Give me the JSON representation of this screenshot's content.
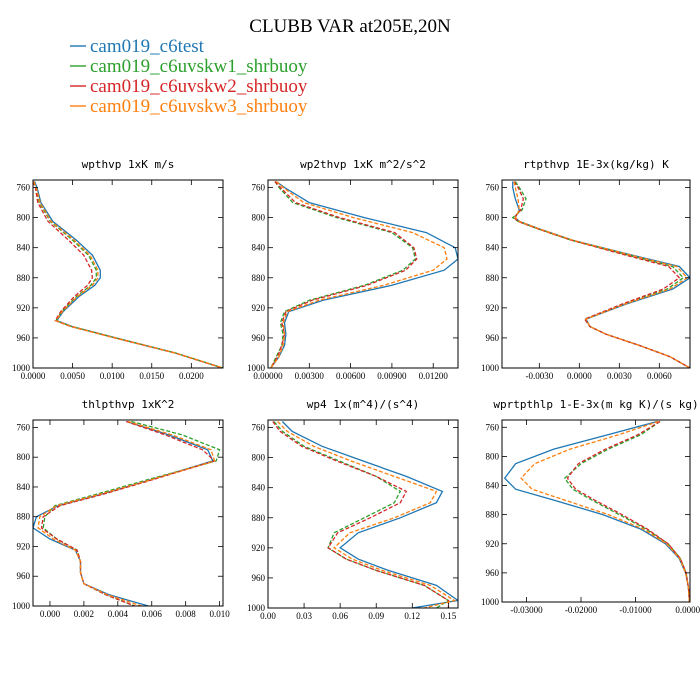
{
  "figure_title": "CLUBB VAR at205E,20N",
  "legend": [
    {
      "label": "cam019_c6test",
      "color": "#1f77b4",
      "dash": "solid"
    },
    {
      "label": "cam019_c6uvskw1_shrbuoy",
      "color": "#2ca02c",
      "dash": "dashed"
    },
    {
      "label": "cam019_c6uvskw2_shrbuoy",
      "color": "#d62728",
      "dash": "dashed"
    },
    {
      "label": "cam019_c6uvskw3_shrbuoy",
      "color": "#ff7f0e",
      "dash": "dashed"
    }
  ],
  "chart_data": [
    {
      "type": "line",
      "title": "wpthvp  1xK m/s",
      "ylim": [
        1000,
        750
      ],
      "yticks": [
        "760",
        "800",
        "840",
        "880",
        "920",
        "960",
        "1000"
      ],
      "xlim": [
        0,
        0.024
      ],
      "xticks": [
        "0.0000",
        "0.0050",
        "0.0100",
        "0.0150",
        "0.0200"
      ],
      "xtick_values": [
        0,
        0.005,
        0.01,
        0.015,
        0.02
      ],
      "y": [
        752,
        760,
        780,
        805,
        830,
        850,
        870,
        880,
        890,
        905,
        925,
        937,
        945,
        960,
        980,
        1000
      ],
      "series": [
        {
          "name": "cam019_c6test",
          "values": [
            0.0002,
            0.0005,
            0.001,
            0.0025,
            0.0055,
            0.0075,
            0.0085,
            0.0085,
            0.0078,
            0.0058,
            0.0038,
            0.003,
            0.005,
            0.0105,
            0.018,
            0.024
          ]
        },
        {
          "name": "cam019_c6uvskw1_shrbuoy",
          "values": [
            0.0001,
            0.0004,
            0.0008,
            0.0022,
            0.005,
            0.007,
            0.008,
            0.008,
            0.0073,
            0.0055,
            0.0036,
            0.0029,
            0.0049,
            0.0104,
            0.018,
            0.024
          ]
        },
        {
          "name": "cam019_c6uvskw2_shrbuoy",
          "values": [
            0.0,
            0.0003,
            0.0006,
            0.0019,
            0.0045,
            0.0064,
            0.0074,
            0.0075,
            0.0069,
            0.0052,
            0.0035,
            0.0028,
            0.0048,
            0.0103,
            0.0179,
            0.0239
          ]
        },
        {
          "name": "cam019_c6uvskw3_shrbuoy",
          "values": [
            0.0001,
            0.0004,
            0.0009,
            0.0023,
            0.0052,
            0.0072,
            0.0082,
            0.0082,
            0.0075,
            0.0056,
            0.0037,
            0.0029,
            0.0049,
            0.0104,
            0.018,
            0.024
          ]
        }
      ]
    },
    {
      "type": "line",
      "title": "wp2thvp  1xK m^2/s^2",
      "ylim": [
        1000,
        750
      ],
      "yticks": [
        "760",
        "800",
        "840",
        "880",
        "920",
        "960",
        "1000"
      ],
      "xlim": [
        0,
        0.0138
      ],
      "xticks": [
        "0.00000",
        "0.00300",
        "0.00600",
        "0.00900",
        "0.01200"
      ],
      "xtick_values": [
        0,
        0.003,
        0.006,
        0.009,
        0.012
      ],
      "y": [
        752,
        760,
        780,
        800,
        820,
        840,
        855,
        870,
        890,
        910,
        925,
        940,
        955,
        970,
        985,
        1000
      ],
      "series": [
        {
          "name": "cam019_c6test",
          "values": [
            0.0006,
            0.0012,
            0.003,
            0.007,
            0.0115,
            0.0136,
            0.0138,
            0.0128,
            0.009,
            0.004,
            0.0015,
            0.0012,
            0.0013,
            0.0012,
            0.0008,
            0.0002
          ]
        },
        {
          "name": "cam019_c6uvskw1_shrbuoy",
          "values": [
            0.0005,
            0.0008,
            0.0018,
            0.005,
            0.009,
            0.0105,
            0.0107,
            0.0098,
            0.007,
            0.003,
            0.0012,
            0.0009,
            0.0011,
            0.001,
            0.0006,
            0.0002
          ]
        },
        {
          "name": "cam019_c6uvskw2_shrbuoy",
          "values": [
            0.0005,
            0.0009,
            0.002,
            0.0052,
            0.0092,
            0.0106,
            0.0108,
            0.01,
            0.0072,
            0.0032,
            0.0013,
            0.001,
            0.0012,
            0.001,
            0.0007,
            0.0002
          ]
        },
        {
          "name": "cam019_c6uvskw3_shrbuoy",
          "values": [
            0.0006,
            0.0011,
            0.0026,
            0.0062,
            0.0105,
            0.0128,
            0.013,
            0.012,
            0.0084,
            0.0037,
            0.0014,
            0.0011,
            0.0012,
            0.0011,
            0.0008,
            0.0002
          ]
        }
      ]
    },
    {
      "type": "line",
      "title": "rtpthvp  1E-3x(kg/kg) K",
      "ylim": [
        1000,
        750
      ],
      "yticks": [
        "760",
        "800",
        "840",
        "880",
        "920",
        "960",
        "1000"
      ],
      "xlim": [
        -0.0058,
        0.0083
      ],
      "xticks": [
        "-0.0030",
        "0.0000",
        "0.0030",
        "0.0060"
      ],
      "xtick_values": [
        -0.003,
        0,
        0.003,
        0.006
      ],
      "y": [
        752,
        760,
        775,
        790,
        800,
        805,
        815,
        830,
        850,
        865,
        880,
        895,
        915,
        935,
        945,
        955,
        970,
        985,
        1000
      ],
      "series": [
        {
          "name": "cam019_c6test",
          "values": [
            -0.005,
            -0.005,
            -0.0048,
            -0.0045,
            -0.0048,
            -0.0045,
            -0.003,
            -0.0005,
            0.004,
            0.0075,
            0.0083,
            0.007,
            0.0035,
            0.0005,
            0.0008,
            0.002,
            0.0045,
            0.0068,
            0.0083
          ]
        },
        {
          "name": "cam019_c6uvskw1_shrbuoy",
          "values": [
            -0.0048,
            -0.0045,
            -0.004,
            -0.0043,
            -0.005,
            -0.0046,
            -0.0031,
            -0.0006,
            0.0037,
            0.007,
            0.0078,
            0.0066,
            0.0033,
            0.0004,
            0.0008,
            0.002,
            0.0045,
            0.0068,
            0.0083
          ]
        },
        {
          "name": "cam019_c6uvskw2_shrbuoy",
          "values": [
            -0.0049,
            -0.0046,
            -0.0042,
            -0.0044,
            -0.0049,
            -0.0046,
            -0.0031,
            -0.0006,
            0.0035,
            0.0067,
            0.0075,
            0.0063,
            0.0032,
            0.0004,
            0.0008,
            0.002,
            0.0045,
            0.0068,
            0.0083
          ]
        },
        {
          "name": "cam019_c6uvskw3_shrbuoy",
          "values": [
            -0.0049,
            -0.0048,
            -0.0046,
            -0.0045,
            -0.0048,
            -0.0045,
            -0.003,
            -0.0005,
            0.0039,
            0.0073,
            0.0081,
            0.0068,
            0.0034,
            0.0005,
            0.0008,
            0.002,
            0.0045,
            0.0068,
            0.0083
          ]
        }
      ]
    },
    {
      "type": "line",
      "title": "thlpthvp  1xK^2",
      "ylim": [
        1000,
        750
      ],
      "yticks": [
        "760",
        "800",
        "840",
        "880",
        "920",
        "960",
        "1000"
      ],
      "xlim": [
        -0.001,
        0.0102
      ],
      "xticks": [
        "0.000",
        "0.002",
        "0.004",
        "0.006",
        "0.008",
        "0.010"
      ],
      "xtick_values": [
        0,
        0.002,
        0.004,
        0.006,
        0.008,
        0.01
      ],
      "y": [
        752,
        770,
        790,
        805,
        830,
        850,
        865,
        880,
        895,
        910,
        925,
        940,
        955,
        970,
        985,
        1000
      ],
      "series": [
        {
          "name": "cam019_c6test",
          "values": [
            0.0045,
            0.007,
            0.0093,
            0.0096,
            0.006,
            0.003,
            0.0005,
            -0.0008,
            -0.001,
            0.0,
            0.0015,
            0.0018,
            0.0018,
            0.002,
            0.0035,
            0.0058
          ]
        },
        {
          "name": "cam019_c6uvskw1_shrbuoy",
          "values": [
            0.0048,
            0.0078,
            0.01,
            0.0098,
            0.0058,
            0.0027,
            0.0003,
            -0.0003,
            -0.0004,
            0.0004,
            0.0016,
            0.0018,
            0.0018,
            0.002,
            0.0033,
            0.005
          ]
        },
        {
          "name": "cam019_c6uvskw2_shrbuoy",
          "values": [
            0.0045,
            0.0068,
            0.009,
            0.0097,
            0.0061,
            0.0031,
            0.0006,
            -0.0004,
            -0.0005,
            0.0004,
            0.0016,
            0.0018,
            0.0018,
            0.002,
            0.0033,
            0.005
          ]
        },
        {
          "name": "cam019_c6uvskw3_shrbuoy",
          "values": [
            0.0046,
            0.0072,
            0.0095,
            0.0097,
            0.006,
            0.0029,
            0.0004,
            -0.0006,
            -0.0007,
            0.0002,
            0.0015,
            0.0018,
            0.0018,
            0.002,
            0.0034,
            0.0054
          ]
        }
      ]
    },
    {
      "type": "line",
      "title": "wp4  1x(m^4)/(s^4)",
      "ylim": [
        1000,
        750
      ],
      "yticks": [
        "760",
        "800",
        "840",
        "880",
        "920",
        "960",
        "1000"
      ],
      "xlim": [
        0,
        0.158
      ],
      "xticks": [
        "0.00",
        "0.03",
        "0.06",
        "0.09",
        "0.12",
        "0.15"
      ],
      "xtick_values": [
        0,
        0.03,
        0.06,
        0.09,
        0.12,
        0.15
      ],
      "y": [
        752,
        765,
        785,
        805,
        825,
        845,
        860,
        880,
        900,
        920,
        935,
        950,
        970,
        990,
        1000
      ],
      "series": [
        {
          "name": "cam019_c6test",
          "values": [
            0.012,
            0.02,
            0.045,
            0.08,
            0.115,
            0.145,
            0.14,
            0.11,
            0.075,
            0.06,
            0.075,
            0.1,
            0.14,
            0.158,
            0.12
          ]
        },
        {
          "name": "cam019_c6uvskw1_shrbuoy",
          "values": [
            0.005,
            0.012,
            0.03,
            0.06,
            0.09,
            0.11,
            0.105,
            0.08,
            0.055,
            0.05,
            0.065,
            0.09,
            0.13,
            0.15,
            0.14
          ]
        },
        {
          "name": "cam019_c6uvskw2_shrbuoy",
          "values": [
            0.004,
            0.01,
            0.028,
            0.058,
            0.09,
            0.115,
            0.11,
            0.085,
            0.058,
            0.05,
            0.065,
            0.09,
            0.13,
            0.15,
            0.15
          ]
        },
        {
          "name": "cam019_c6uvskw3_shrbuoy",
          "values": [
            0.008,
            0.016,
            0.038,
            0.07,
            0.105,
            0.14,
            0.135,
            0.105,
            0.068,
            0.055,
            0.07,
            0.095,
            0.135,
            0.155,
            0.13
          ]
        }
      ]
    },
    {
      "type": "line",
      "title": "wprtpthlp  1-E-3x(m kg K)/(s kg)",
      "ylim": [
        1000,
        750
      ],
      "yticks": [
        "760",
        "800",
        "840",
        "880",
        "920",
        "960",
        "1000"
      ],
      "xlim": [
        -0.0345,
        0
      ],
      "xticks": [
        "-0.03000",
        "-0.02000",
        "-0.01000",
        "0.00000"
      ],
      "xtick_values": [
        -0.03,
        -0.02,
        -0.01,
        0
      ],
      "y": [
        752,
        770,
        790,
        810,
        830,
        845,
        860,
        880,
        900,
        920,
        940,
        960,
        980,
        1000
      ],
      "series": [
        {
          "name": "cam019_c6test",
          "values": [
            -0.006,
            -0.015,
            -0.025,
            -0.032,
            -0.034,
            -0.032,
            -0.025,
            -0.016,
            -0.009,
            -0.0045,
            -0.002,
            -0.0008,
            -0.0003,
            -0.0001
          ]
        },
        {
          "name": "cam019_c6uvskw1_shrbuoy",
          "values": [
            -0.0055,
            -0.009,
            -0.015,
            -0.02,
            -0.023,
            -0.0215,
            -0.018,
            -0.013,
            -0.008,
            -0.004,
            -0.0018,
            -0.0007,
            -0.0003,
            -0.0001
          ]
        },
        {
          "name": "cam019_c6uvskw2_shrbuoy",
          "values": [
            -0.0055,
            -0.0095,
            -0.0155,
            -0.0205,
            -0.0225,
            -0.021,
            -0.0175,
            -0.0125,
            -0.0078,
            -0.004,
            -0.0018,
            -0.0007,
            -0.0003,
            -0.0001
          ]
        },
        {
          "name": "cam019_c6uvskw3_shrbuoy",
          "values": [
            -0.0058,
            -0.013,
            -0.022,
            -0.0285,
            -0.031,
            -0.029,
            -0.023,
            -0.015,
            -0.0085,
            -0.0043,
            -0.0019,
            -0.0008,
            -0.0003,
            -0.0001
          ]
        }
      ]
    }
  ]
}
